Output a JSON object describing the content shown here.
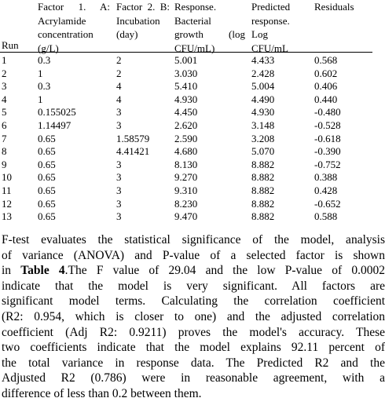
{
  "table": {
    "headers": [
      [
        "Run"
      ],
      [
        "Factor 1. A:",
        "Acrylamide",
        "concentration",
        "(g/L)"
      ],
      [
        "Factor 2. B:",
        "Incubation",
        "(day)"
      ],
      [
        "Response.",
        "Bacterial",
        "growth (log",
        "CFU/mL)"
      ],
      [
        "Predicted",
        "response. Log",
        "CFU/mL"
      ],
      [
        "Residuals"
      ]
    ],
    "rows": [
      [
        "1",
        "0.3",
        "2",
        "5.001",
        "4.433",
        "0.568"
      ],
      [
        "2",
        "1",
        "2",
        "3.030",
        "2.428",
        "0.602"
      ],
      [
        "3",
        "0.3",
        "4",
        "5.410",
        "5.004",
        "0.406"
      ],
      [
        "4",
        "1",
        "4",
        "4.930",
        "4.490",
        "0.440"
      ],
      [
        "5",
        "0.155025",
        "3",
        "4.450",
        "4.930",
        "-0.480"
      ],
      [
        "6",
        "1.14497",
        "3",
        "2.620",
        "3.148",
        "-0.528"
      ],
      [
        "7",
        "0.65",
        "1.58579",
        "2.590",
        "3.208",
        "-0.618"
      ],
      [
        "8",
        "0.65",
        "4.41421",
        "4.680",
        "5.070",
        "-0.390"
      ],
      [
        "9",
        "0.65",
        "3",
        "8.130",
        "8.882",
        "-0.752"
      ],
      [
        "10",
        "0.65",
        "3",
        "9.270",
        "8.882",
        "0.388"
      ],
      [
        "11",
        "0.65",
        "3",
        "9.310",
        "8.882",
        "0.428"
      ],
      [
        "12",
        "0.65",
        "3",
        "8.230",
        "8.882",
        "-0.652"
      ],
      [
        "13",
        "0.65",
        "3",
        "9.470",
        "8.882",
        "0.588"
      ]
    ]
  },
  "paragraph": {
    "lines": [
      "F-test evaluates the statistical significance of the model, analysis",
      "of variance (ANOVA) and P-value of a selected factor is shown",
      [
        "in ",
        "Table 4",
        ".The F value of 29.04 and the low P-value of 0.0002"
      ],
      "indicate that the model is very significant. All factors are",
      "significant model terms. Calculating the correlation coefficient",
      "(R2: 0.954, which is closer to one) and the adjusted correlation",
      "coefficient (Adj R2: 0.9211) proves the model's accuracy. These",
      "two coefficients indicate that the model explains 92.11 percent of",
      "the total variance in response data. The Predicted R2 and the",
      "Adjusted R2 (0.786) were in reasonable agreement, with a",
      "difference of less than 0.2 between them."
    ]
  }
}
